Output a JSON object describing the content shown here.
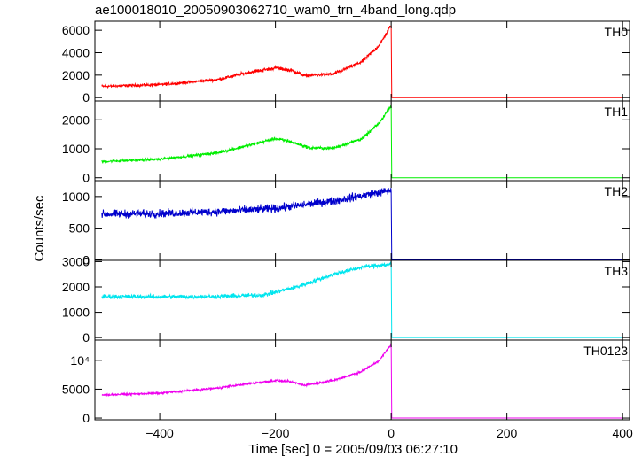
{
  "chart_data": {
    "type": "line",
    "title": "ae100018010_20050903062710_wam0_trn_4band_long.qdp",
    "xlabel": "Time [sec] 0 = 2005/09/03 06:27:10",
    "ylabel": "Counts/sec",
    "xlim": [
      -512,
      412
    ],
    "xticks": [
      -400,
      -200,
      0,
      200,
      400
    ],
    "xtick_labels": [
      "−400",
      "−200",
      "0",
      "200",
      "400"
    ],
    "panels": [
      {
        "name": "TH0",
        "color": "#ff0000",
        "ylim": [
          -300,
          6800
        ],
        "yticks": [
          0,
          2000,
          4000,
          6000
        ],
        "ytick_labels": [
          "0",
          "2000",
          "4000",
          "6000"
        ],
        "points": [
          [
            -500,
            1000
          ],
          [
            -400,
            1150
          ],
          [
            -300,
            1600
          ],
          [
            -250,
            2200
          ],
          [
            -200,
            2650
          ],
          [
            -170,
            2400
          ],
          [
            -150,
            1950
          ],
          [
            -100,
            2100
          ],
          [
            -50,
            3200
          ],
          [
            -20,
            4700
          ],
          [
            -5,
            6000
          ],
          [
            0,
            6500
          ],
          [
            2,
            0
          ],
          [
            400,
            0
          ]
        ],
        "noise": 120
      },
      {
        "name": "TH1",
        "color": "#00ee00",
        "ylim": [
          -100,
          2650
        ],
        "yticks": [
          0,
          1000,
          2000
        ],
        "ytick_labels": [
          "0",
          "1000",
          "2000"
        ],
        "points": [
          [
            -500,
            560
          ],
          [
            -400,
            640
          ],
          [
            -300,
            860
          ],
          [
            -250,
            1100
          ],
          [
            -200,
            1350
          ],
          [
            -175,
            1250
          ],
          [
            -140,
            1030
          ],
          [
            -100,
            1020
          ],
          [
            -50,
            1350
          ],
          [
            -20,
            1900
          ],
          [
            0,
            2500
          ],
          [
            2,
            0
          ],
          [
            400,
            0
          ]
        ],
        "noise": 40
      },
      {
        "name": "TH2",
        "color": "#0000cc",
        "ylim": [
          -10,
          1250
        ],
        "yticks": [
          0,
          500,
          1000
        ],
        "ytick_labels": [
          "0",
          "500",
          "1000"
        ],
        "points": [
          [
            -500,
            720
          ],
          [
            -400,
            730
          ],
          [
            -300,
            760
          ],
          [
            -200,
            810
          ],
          [
            -100,
            930
          ],
          [
            0,
            1100
          ],
          [
            2,
            0
          ],
          [
            400,
            0
          ]
        ],
        "noise": 45
      },
      {
        "name": "TH3",
        "color": "#00e5ee",
        "ylim": [
          -100,
          3050
        ],
        "yticks": [
          0,
          1000,
          2000,
          3000
        ],
        "ytick_labels": [
          "0",
          "1000",
          "2000",
          "3000"
        ],
        "points": [
          [
            -500,
            1620
          ],
          [
            -400,
            1610
          ],
          [
            -300,
            1620
          ],
          [
            -220,
            1680
          ],
          [
            -160,
            2020
          ],
          [
            -100,
            2500
          ],
          [
            -50,
            2790
          ],
          [
            0,
            2900
          ],
          [
            2,
            0
          ],
          [
            400,
            0
          ]
        ],
        "noise": 60
      },
      {
        "name": "TH0123",
        "color": "#ee00ee",
        "ylim": [
          -300,
          13500
        ],
        "yticks": [
          0,
          5000,
          10000
        ],
        "ytick_labels": [
          "0",
          "5000",
          "10⁴"
        ],
        "points": [
          [
            -500,
            4000
          ],
          [
            -400,
            4300
          ],
          [
            -300,
            5200
          ],
          [
            -250,
            5900
          ],
          [
            -200,
            6500
          ],
          [
            -175,
            6300
          ],
          [
            -150,
            5700
          ],
          [
            -100,
            6500
          ],
          [
            -50,
            8100
          ],
          [
            -20,
            10000
          ],
          [
            0,
            12800
          ],
          [
            2,
            0
          ],
          [
            400,
            0
          ]
        ],
        "noise": 140
      }
    ]
  }
}
